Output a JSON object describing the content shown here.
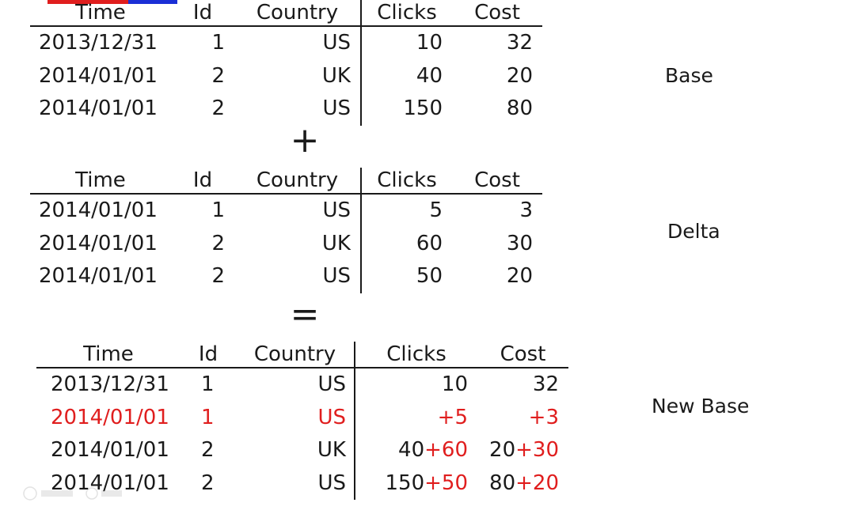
{
  "tables": {
    "base": {
      "label": "Base",
      "headers": [
        "Time",
        "Id",
        "Country",
        "Clicks",
        "Cost"
      ],
      "rows": [
        {
          "time": "2013/12/31",
          "id": "1",
          "country": "US",
          "clicks": "10",
          "cost": "32"
        },
        {
          "time": "2014/01/01",
          "id": "2",
          "country": "UK",
          "clicks": "40",
          "cost": "20"
        },
        {
          "time": "2014/01/01",
          "id": "2",
          "country": "US",
          "clicks": "150",
          "cost": "80"
        }
      ]
    },
    "delta": {
      "label": "Delta",
      "headers": [
        "Time",
        "Id",
        "Country",
        "Clicks",
        "Cost"
      ],
      "rows": [
        {
          "time": "2014/01/01",
          "id": "1",
          "country": "US",
          "clicks": "5",
          "cost": "3"
        },
        {
          "time": "2014/01/01",
          "id": "2",
          "country": "UK",
          "clicks": "60",
          "cost": "30"
        },
        {
          "time": "2014/01/01",
          "id": "2",
          "country": "US",
          "clicks": "50",
          "cost": "20"
        }
      ]
    },
    "new_base": {
      "label": "New Base",
      "headers": [
        "Time",
        "Id",
        "Country",
        "Clicks",
        "Cost"
      ],
      "rows": [
        {
          "time": "2013/12/31",
          "id": "1",
          "country": "US",
          "clicks_base": "10",
          "clicks_add": "",
          "cost_base": "32",
          "cost_add": ""
        },
        {
          "time": "2014/01/01",
          "id": "1",
          "country": "US",
          "clicks_base": "",
          "clicks_add": "+5",
          "cost_base": "",
          "cost_add": "+3"
        },
        {
          "time": "2014/01/01",
          "id": "2",
          "country": "UK",
          "clicks_base": "40",
          "clicks_add": "+60",
          "cost_base": "20",
          "cost_add": "+30"
        },
        {
          "time": "2014/01/01",
          "id": "2",
          "country": "US",
          "clicks_base": "150",
          "clicks_add": "+50",
          "cost_base": "80",
          "cost_add": "+20"
        }
      ]
    }
  },
  "operators": {
    "plus": "+",
    "equals": "="
  },
  "colors": {
    "highlight": "#e01e1e",
    "text": "#1a1a1a",
    "bar_red": "#e01e1e",
    "bar_blue": "#1a2fd6"
  }
}
